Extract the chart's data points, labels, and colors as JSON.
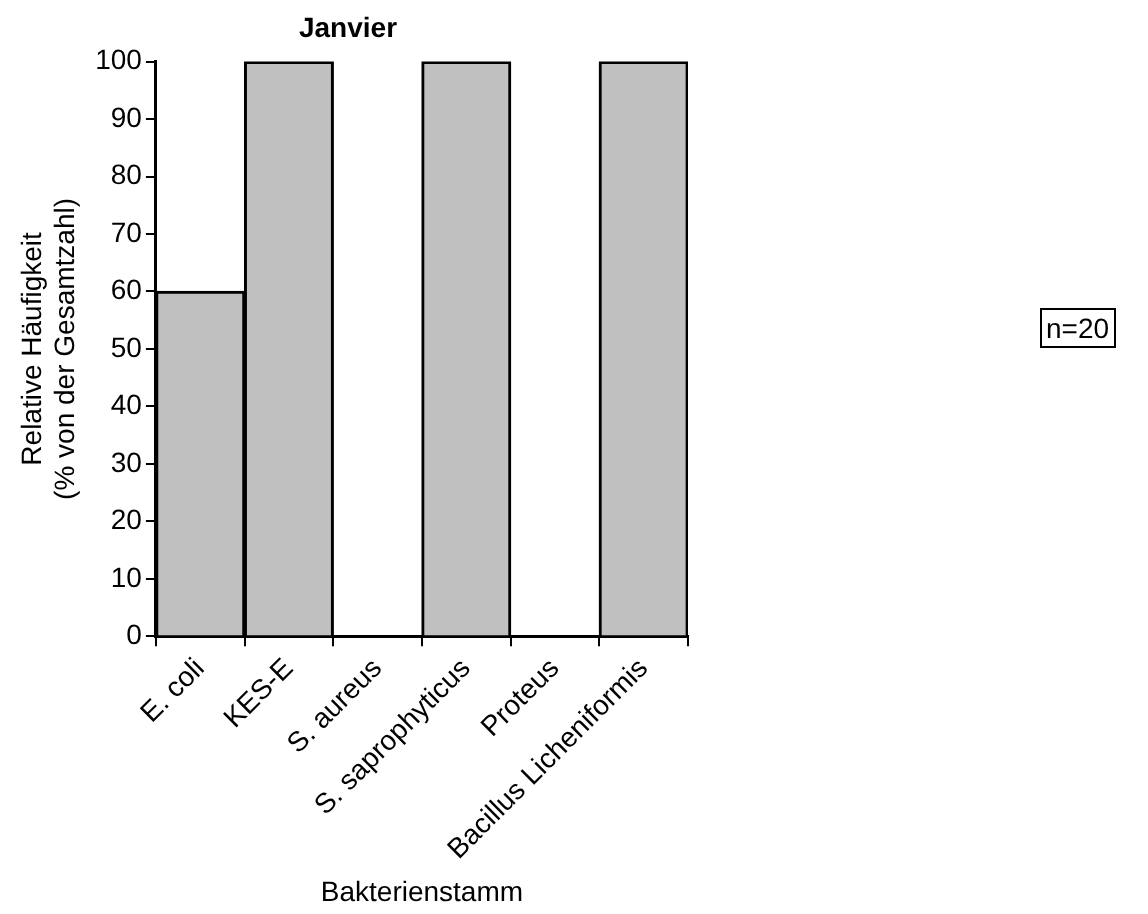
{
  "chart_data": {
    "type": "bar",
    "title": "Janvier",
    "xlabel": "Bakterienstamm",
    "ylabel": "Relative Häufigkeit\n(% von der Gesamtzahl)",
    "categories": [
      "E. coli",
      "KES-E",
      "S. aureus",
      "S. saprophyticus",
      "Proteus",
      "Bacillus Licheniformis"
    ],
    "values": [
      60,
      100,
      0,
      100,
      0,
      100
    ],
    "color": "#c0c0c0",
    "ylim": [
      0,
      100
    ],
    "yticks": [
      0,
      10,
      20,
      30,
      40,
      50,
      60,
      70,
      80,
      90,
      100
    ],
    "grid": false,
    "legend": false,
    "annotations": [
      "n=20"
    ]
  }
}
